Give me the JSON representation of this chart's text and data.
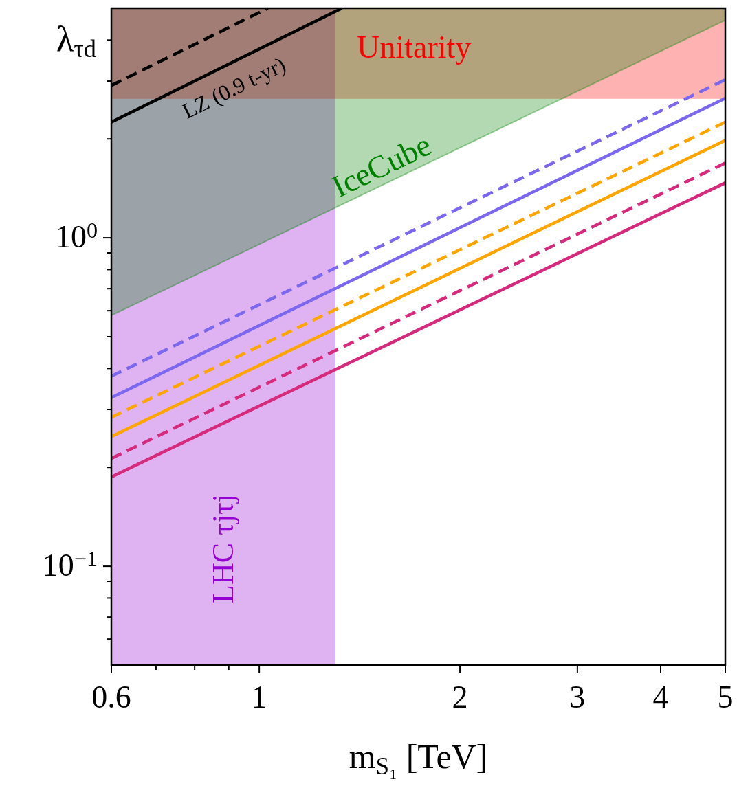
{
  "chart_data": {
    "type": "line",
    "xlabel": "m$_{S₁}$ [TeV]",
    "ylabel": "λ$_{τd}$",
    "log": "xy",
    "xlim": [
      0.6,
      5
    ],
    "ylim": [
      0.05,
      5
    ],
    "xticks": [
      0.6,
      {
        "value": 0.7,
        "label": null
      },
      {
        "value": 0.8,
        "label": null
      },
      {
        "value": 0.9,
        "label": null
      },
      1,
      2,
      3,
      4,
      5
    ],
    "yticks": [
      {
        "value": 0.06,
        "label": null
      },
      {
        "value": 0.07,
        "label": null
      },
      {
        "value": 0.08,
        "label": null
      },
      {
        "value": 0.09,
        "label": null
      },
      {
        "value": 0.1,
        "label": "10$^{−1}$"
      },
      {
        "value": 0.2,
        "label": null
      },
      {
        "value": 0.3,
        "label": null
      },
      {
        "value": 0.4,
        "label": null
      },
      {
        "value": 0.5,
        "label": null
      },
      {
        "value": 0.6,
        "label": null
      },
      {
        "value": 0.7,
        "label": null
      },
      {
        "value": 0.8,
        "label": null
      },
      {
        "value": 0.9,
        "label": null
      },
      {
        "value": 1,
        "label": "10$^{0}$"
      },
      {
        "value": 2,
        "label": null
      },
      {
        "value": 3,
        "label": null
      },
      {
        "value": 4,
        "label": null
      }
    ],
    "bands": [
      {
        "axis": "x",
        "from": 0.6,
        "to": 1.3,
        "label": "LHC τjτj",
        "color": "#9400d3"
      },
      {
        "axis": "y",
        "from": 2.65,
        "to": 5,
        "label": "Unitarity",
        "color": "#ff0000"
      }
    ],
    "series": [
      {
        "type": "line",
        "name": "IceCube",
        "color": "#008000",
        "line_style": "solid",
        "x": [
          0.6,
          5
        ],
        "values": [
          0.58,
          4.6
        ],
        "lower": [
          0.58,
          4.6
        ],
        "upper": [
          5,
          5
        ]
      },
      {
        "color": "#000000",
        "line_style": "dashed",
        "x": [
          0.6,
          1.03
        ],
        "values": [
          2.91,
          5
        ]
      },
      {
        "name": "LZ (0.9 t-yr)",
        "color": "#000000",
        "line_style": "solid",
        "x": [
          0.6,
          1.33
        ],
        "values": [
          2.25,
          5
        ]
      },
      {
        "color": "#7b68ee",
        "line_style": "dashed",
        "x": [
          0.6,
          5
        ],
        "values": [
          0.379,
          3.03
        ]
      },
      {
        "color": "#7b68ee",
        "line_style": "solid",
        "x": [
          0.6,
          5
        ],
        "values": [
          0.326,
          2.66
        ]
      },
      {
        "color": "#ffa500",
        "line_style": "dashed",
        "x": [
          0.6,
          5
        ],
        "values": [
          0.284,
          2.25
        ]
      },
      {
        "color": "#ffa500",
        "line_style": "solid",
        "x": [
          0.6,
          5
        ],
        "values": [
          0.248,
          1.98
        ]
      },
      {
        "color": "#d62a7d",
        "line_style": "dashed",
        "x": [
          0.6,
          5
        ],
        "values": [
          0.213,
          1.69
        ]
      },
      {
        "color": "#d62a7d",
        "line_style": "solid",
        "x": [
          0.6,
          5
        ],
        "values": [
          0.187,
          1.47
        ]
      }
    ]
  }
}
